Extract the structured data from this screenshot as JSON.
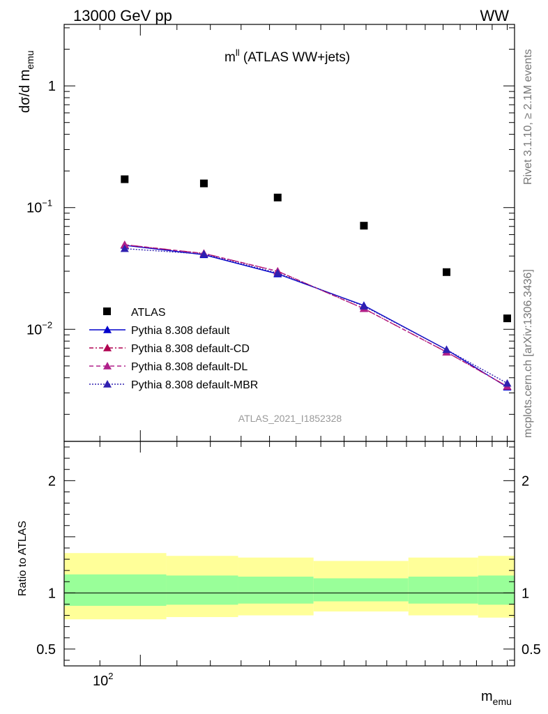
{
  "header": {
    "energy_label": "13000 GeV pp",
    "process_label": "WW"
  },
  "side_labels": {
    "rivet": "Rivet 3.1.10, ≥ 2.1M events",
    "mcplots": "mcplots.cern.ch [arXiv:1306.3436]"
  },
  "watermark": "ATLAS_2021_I1852328",
  "colors": {
    "atlas": "#000000",
    "default": "#0000cc",
    "default_cd": "#b00050",
    "default_dl": "#b0208a",
    "default_mbr": "#3020b0",
    "band_inner": "#99ff99",
    "band_outer": "#ffff99"
  },
  "chart_data": [
    {
      "type": "scatter",
      "panel": "main",
      "title": "m",
      "title_sup": "ll",
      "title_rest": " (ATLAS WW+jets)",
      "ylabel": "dσ/d m",
      "ylabel_sub": "emu",
      "yscale": "log",
      "xscale": "log",
      "xlim": [
        82,
        265
      ],
      "ylim": [
        0.0012,
        3.2
      ],
      "y_tick_labels": [
        {
          "value": 1,
          "base": "1",
          "exp": ""
        },
        {
          "value": 0.1,
          "base": "10",
          "exp": "−1"
        },
        {
          "value": 0.01,
          "base": "10",
          "exp": "−2"
        }
      ],
      "legend_position": "bottom-left",
      "series": [
        {
          "name": "ATLAS",
          "style": "square",
          "x": [
            96,
            118,
            143,
            179,
            222,
            260
          ],
          "y": [
            0.171,
            0.158,
            0.121,
            0.071,
            0.0295,
            0.0123
          ]
        },
        {
          "name": "Pythia 8.308 default",
          "style": "solid",
          "x": [
            96,
            118,
            143,
            179,
            222,
            260
          ],
          "y": [
            0.049,
            0.041,
            0.0285,
            0.0157,
            0.0068,
            0.00335
          ]
        },
        {
          "name": "Pythia 8.308 default-CD",
          "style": "dashdot",
          "x": [
            96,
            118,
            143,
            179,
            222,
            260
          ],
          "y": [
            0.0495,
            0.042,
            0.03,
            0.0148,
            0.0065,
            0.0034
          ]
        },
        {
          "name": "Pythia 8.308 default-DL",
          "style": "dashed",
          "x": [
            96,
            118,
            143,
            179,
            222,
            260
          ],
          "y": [
            0.0495,
            0.042,
            0.03,
            0.0148,
            0.0065,
            0.0034
          ]
        },
        {
          "name": "Pythia 8.308 default-MBR",
          "style": "dotted",
          "x": [
            96,
            118,
            143,
            179,
            222,
            260
          ],
          "y": [
            0.046,
            0.0415,
            0.029,
            0.0155,
            0.0068,
            0.0036
          ]
        }
      ]
    },
    {
      "type": "area",
      "panel": "ratio",
      "ylabel": "Ratio to ATLAS",
      "xlabel": "m",
      "xlabel_sub": "emu",
      "xscale": "log",
      "xlim": [
        82,
        265
      ],
      "ylim": [
        0.35,
        2.35
      ],
      "y_tick_labels": [
        "2",
        "1",
        "0.5"
      ],
      "y_ticks": [
        2,
        1,
        0.5
      ],
      "x_tick_labels": [
        "10",
        "2"
      ],
      "x_tick_value": 100,
      "reference_line": 1,
      "bands": [
        {
          "x0": 82,
          "x1": 107,
          "inner": [
            0.885,
            1.165
          ],
          "outer": [
            0.765,
            1.355
          ]
        },
        {
          "x0": 107,
          "x1": 129,
          "inner": [
            0.895,
            1.155
          ],
          "outer": [
            0.785,
            1.33
          ]
        },
        {
          "x0": 129,
          "x1": 157,
          "inner": [
            0.905,
            1.145
          ],
          "outer": [
            0.8,
            1.315
          ]
        },
        {
          "x0": 157,
          "x1": 201,
          "inner": [
            0.925,
            1.13
          ],
          "outer": [
            0.835,
            1.285
          ]
        },
        {
          "x0": 201,
          "x1": 241,
          "inner": [
            0.905,
            1.145
          ],
          "outer": [
            0.8,
            1.315
          ]
        },
        {
          "x0": 241,
          "x1": 265,
          "inner": [
            0.895,
            1.155
          ],
          "outer": [
            0.78,
            1.33
          ]
        }
      ]
    }
  ]
}
